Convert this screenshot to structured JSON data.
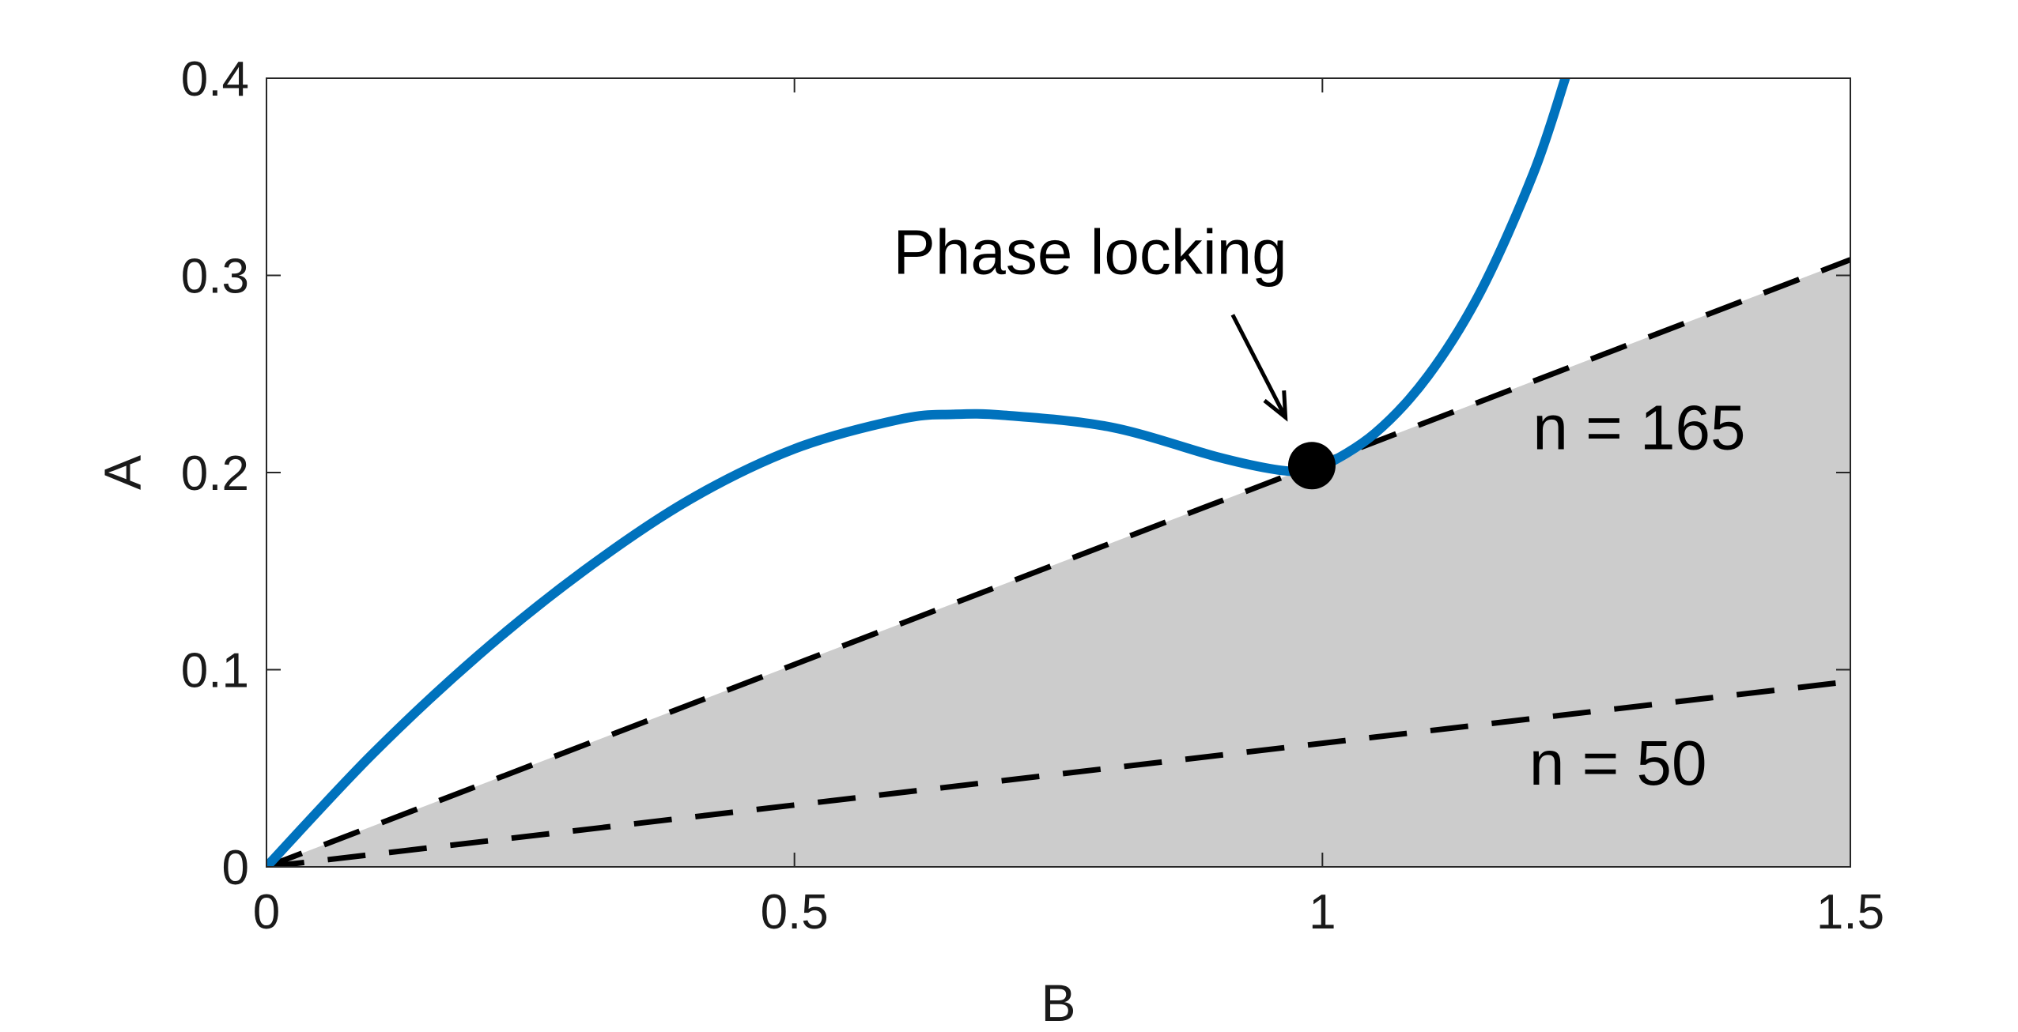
{
  "chart_data": {
    "type": "line",
    "xlabel": "B",
    "ylabel": "A",
    "xlim": [
      0,
      1.5
    ],
    "ylim": [
      0,
      0.4
    ],
    "xticks": [
      0,
      0.5,
      1,
      1.5
    ],
    "xtick_labels": [
      "0",
      "0.5",
      "1",
      "1.5"
    ],
    "yticks": [
      0,
      0.1,
      0.2,
      0.3,
      0.4
    ],
    "ytick_labels": [
      "0",
      "0.1",
      "0.2",
      "0.3",
      "0.4"
    ],
    "grid": false,
    "curve": {
      "color": "#0072BD",
      "x": [
        0,
        0.1,
        0.2,
        0.3,
        0.4,
        0.5,
        0.6,
        0.65,
        0.7,
        0.8,
        0.9,
        0.95,
        0.98,
        1.0,
        1.05,
        1.1,
        1.15,
        1.2,
        1.23
      ],
      "y": [
        0,
        0.057,
        0.107,
        0.15,
        0.186,
        0.212,
        0.227,
        0.2295,
        0.229,
        0.223,
        0.208,
        0.202,
        0.2005,
        0.203,
        0.22,
        0.249,
        0.292,
        0.352,
        0.4
      ]
    },
    "dashed_lines": [
      {
        "label": "n = 165",
        "slope": 0.2053,
        "color": "#000000"
      },
      {
        "label": "n = 50",
        "slope": 0.0627,
        "color": "#000000"
      }
    ],
    "shaded_region": {
      "below_slope": 0.2053,
      "color": "#cccccc"
    },
    "marker": {
      "x": 0.99,
      "y": 0.2035,
      "color": "#000000"
    },
    "annotations": [
      {
        "text": "Phase locking",
        "x": 0.78,
        "y": 0.312
      },
      {
        "text": "n = 165",
        "x": 1.3,
        "y": 0.223
      },
      {
        "text": "n = 50",
        "x": 1.28,
        "y": 0.053
      }
    ],
    "arrow": {
      "from": [
        0.915,
        0.28
      ],
      "to": [
        0.965,
        0.228
      ]
    }
  }
}
